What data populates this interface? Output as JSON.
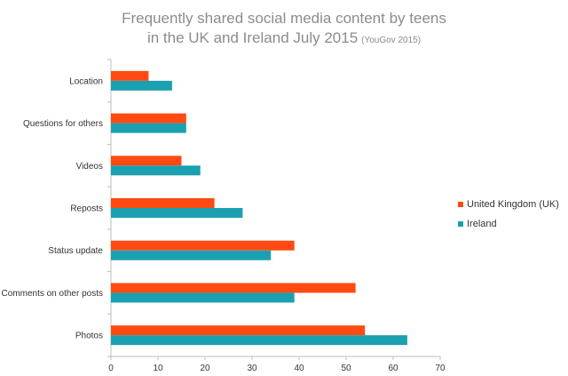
{
  "chart_data": {
    "type": "bar",
    "orientation": "horizontal",
    "title": "Frequently shared social media content by teens",
    "title_line2": "in the UK and Ireland July 2015",
    "title_source": "(YouGov 2015)",
    "categories": [
      "Location",
      "Questions for others",
      "Videos",
      "Reposts",
      "Status update",
      "Comments on other posts",
      "Photos"
    ],
    "series": [
      {
        "name": "United Kingdom (UK)",
        "color": "#ff4a12",
        "values": [
          8,
          16,
          15,
          22,
          39,
          52,
          54
        ]
      },
      {
        "name": "Ireland",
        "color": "#1aa0b0",
        "values": [
          13,
          16,
          19,
          28,
          34,
          39,
          63
        ]
      }
    ],
    "xlim": [
      0,
      70
    ],
    "xticks": [
      "0",
      "10",
      "20",
      "30",
      "40",
      "50",
      "60",
      "70"
    ],
    "grid": false,
    "legend_position": "right"
  }
}
